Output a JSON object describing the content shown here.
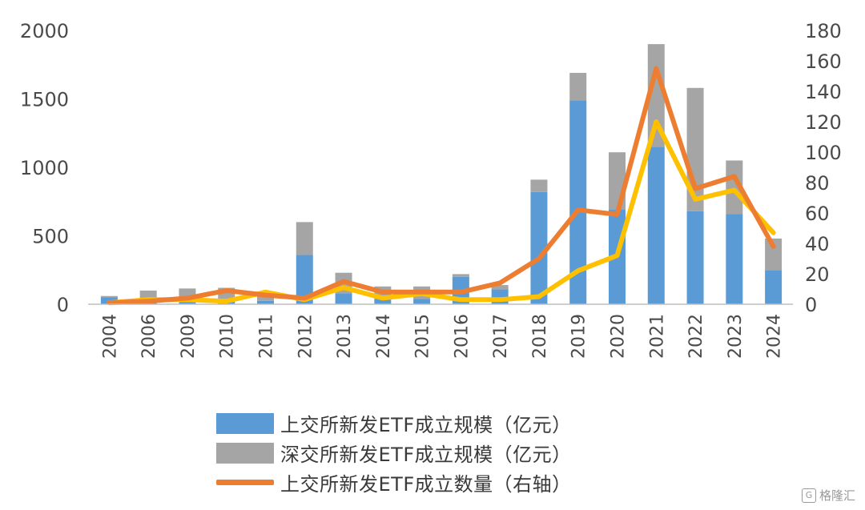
{
  "chart_data": {
    "type": "bar",
    "categories": [
      "2004",
      "2006",
      "2009",
      "2010",
      "2011",
      "2012",
      "2013",
      "2014",
      "2015",
      "2016",
      "2017",
      "2018",
      "2019",
      "2020",
      "2021",
      "2022",
      "2023",
      "2024"
    ],
    "ylim_left": [
      0,
      2000
    ],
    "yticks_left": [
      0,
      500,
      1000,
      1500,
      2000
    ],
    "ylim_right": [
      0,
      180
    ],
    "yticks_right": [
      0,
      20,
      40,
      60,
      80,
      100,
      120,
      140,
      160,
      180
    ],
    "grid": false,
    "legend_position": "bottom",
    "series": [
      {
        "name": "上交所新发ETF成立规模（亿元）",
        "kind": "bar-stacked",
        "axis": "left",
        "color": "#5b9bd5",
        "values": [
          50,
          10,
          15,
          40,
          25,
          360,
          80,
          40,
          40,
          200,
          110,
          820,
          1490,
          690,
          1150,
          680,
          660,
          250
        ]
      },
      {
        "name": "深交所新发ETF成立规模（亿元）",
        "kind": "bar-stacked",
        "axis": "left",
        "color": "#a5a5a5",
        "values": [
          10,
          90,
          100,
          80,
          60,
          240,
          150,
          90,
          90,
          20,
          30,
          90,
          200,
          420,
          750,
          900,
          390,
          230
        ]
      },
      {
        "name": "上交所新发ETF成立数量（右轴）",
        "kind": "line",
        "axis": "right",
        "color": "#ed7d31",
        "values": [
          1,
          2,
          4,
          9,
          6,
          4,
          15,
          8,
          8,
          8,
          14,
          30,
          62,
          59,
          155,
          76,
          84,
          38
        ]
      },
      {
        "kind": "line",
        "axis": "right",
        "color": "#ffc000",
        "values": [
          1,
          3,
          3,
          2,
          8,
          3,
          11,
          4,
          7,
          3,
          3,
          5,
          22,
          32,
          120,
          69,
          75,
          47
        ]
      }
    ]
  },
  "watermark": {
    "icon": "G",
    "text": "格隆汇"
  }
}
